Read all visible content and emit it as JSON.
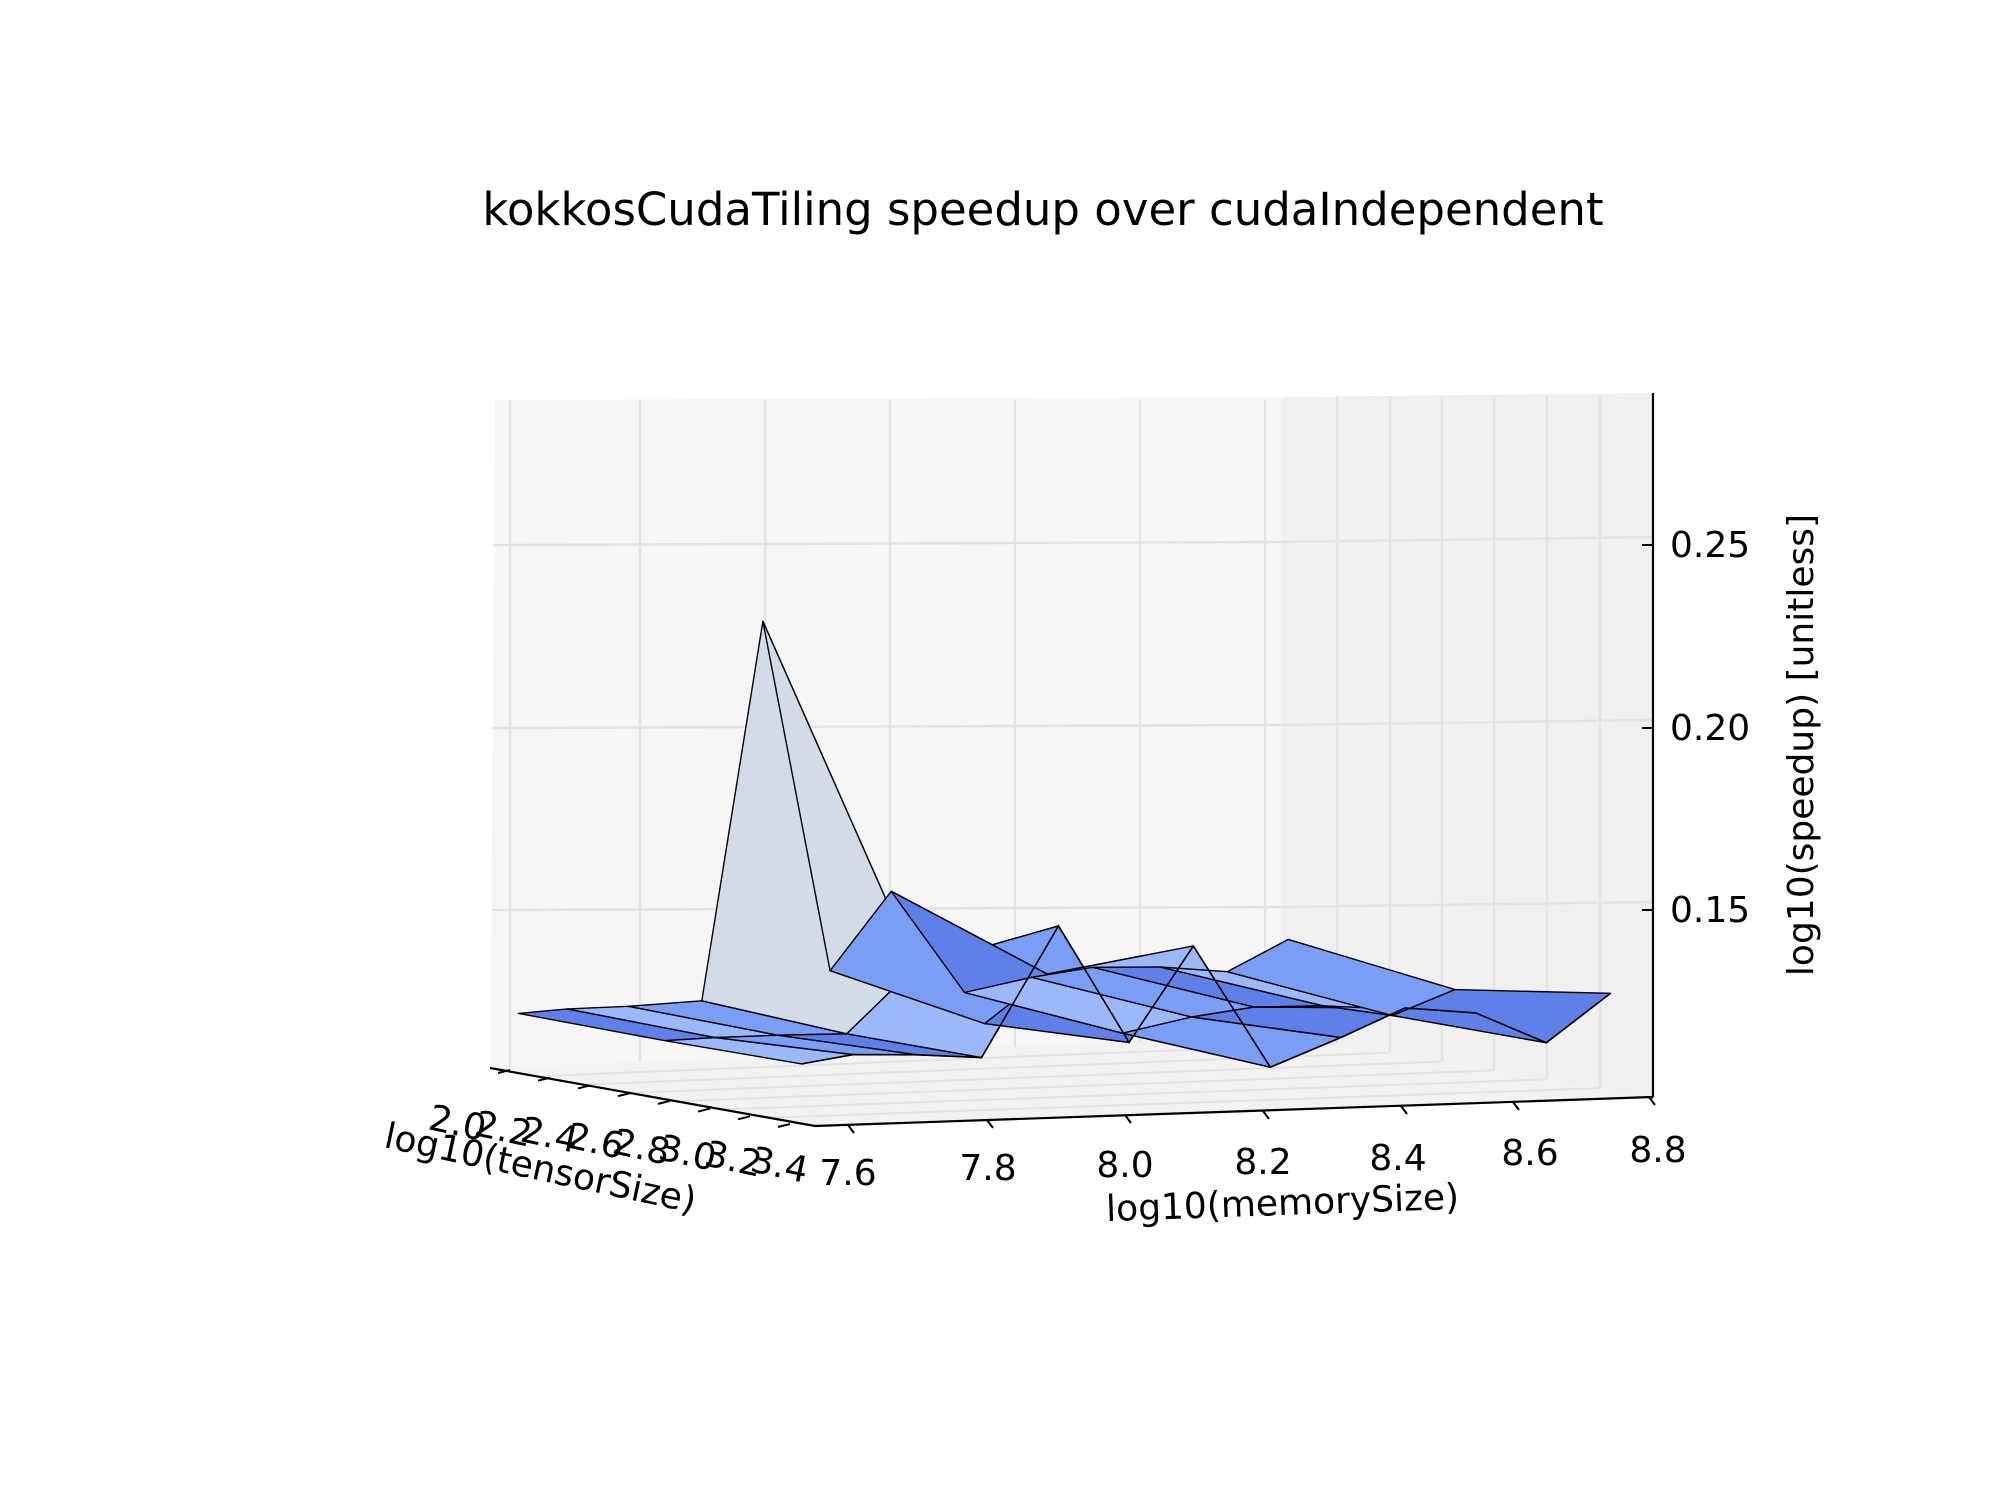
{
  "chart_data": {
    "type": "surface3d",
    "title": "kokkosCudaTiling speedup over cudaIndependent",
    "xlabel": "log10(memorySize)",
    "ylabel": "log10(tensorSize)",
    "zlabel": "log10(speedup) [unitless]",
    "x_ticks": [
      "7.6",
      "7.8",
      "8.0",
      "8.2",
      "8.4",
      "8.6",
      "8.8"
    ],
    "y_ticks": [
      "2.0",
      "2.2",
      "2.4",
      "2.6",
      "2.8",
      "3.0",
      "3.2",
      "3.4"
    ],
    "z_ticks": [
      "0.15",
      "0.20",
      "0.25"
    ],
    "grid": true,
    "surface_color": "#6f93f0",
    "edge_color": "#000000",
    "front_profile": {
      "x": [
        7.52,
        7.6,
        7.7,
        7.8,
        7.92,
        8.03,
        8.13,
        8.25,
        8.36,
        8.46,
        8.57,
        8.68,
        8.78
      ],
      "z": [
        0.133,
        0.136,
        0.135,
        0.133,
        0.185,
        0.137,
        0.175,
        0.125,
        0.136,
        0.147,
        0.144,
        0.131,
        0.15
      ]
    },
    "back_profile": {
      "x": [
        7.52,
        7.6,
        7.7,
        7.82,
        7.92,
        8.03,
        8.13,
        8.25,
        8.36,
        8.46,
        8.57,
        8.68,
        8.78
      ],
      "z": [
        0.133,
        0.134,
        0.134,
        0.135,
        0.287,
        0.145,
        0.176,
        0.134,
        0.139,
        0.142,
        0.141,
        0.138,
        0.15
      ]
    }
  },
  "colors": {
    "pane_left": "#f6f6f6",
    "pane_right": "#f0f0f0",
    "pane_floor": "#f2f2f2",
    "grid": "#e3e3e3",
    "face_light": "#9bb9fa",
    "face_mid": "#7a9ef5",
    "face_dark": "#5f80e8",
    "face_peak": "#d3dbe6"
  }
}
